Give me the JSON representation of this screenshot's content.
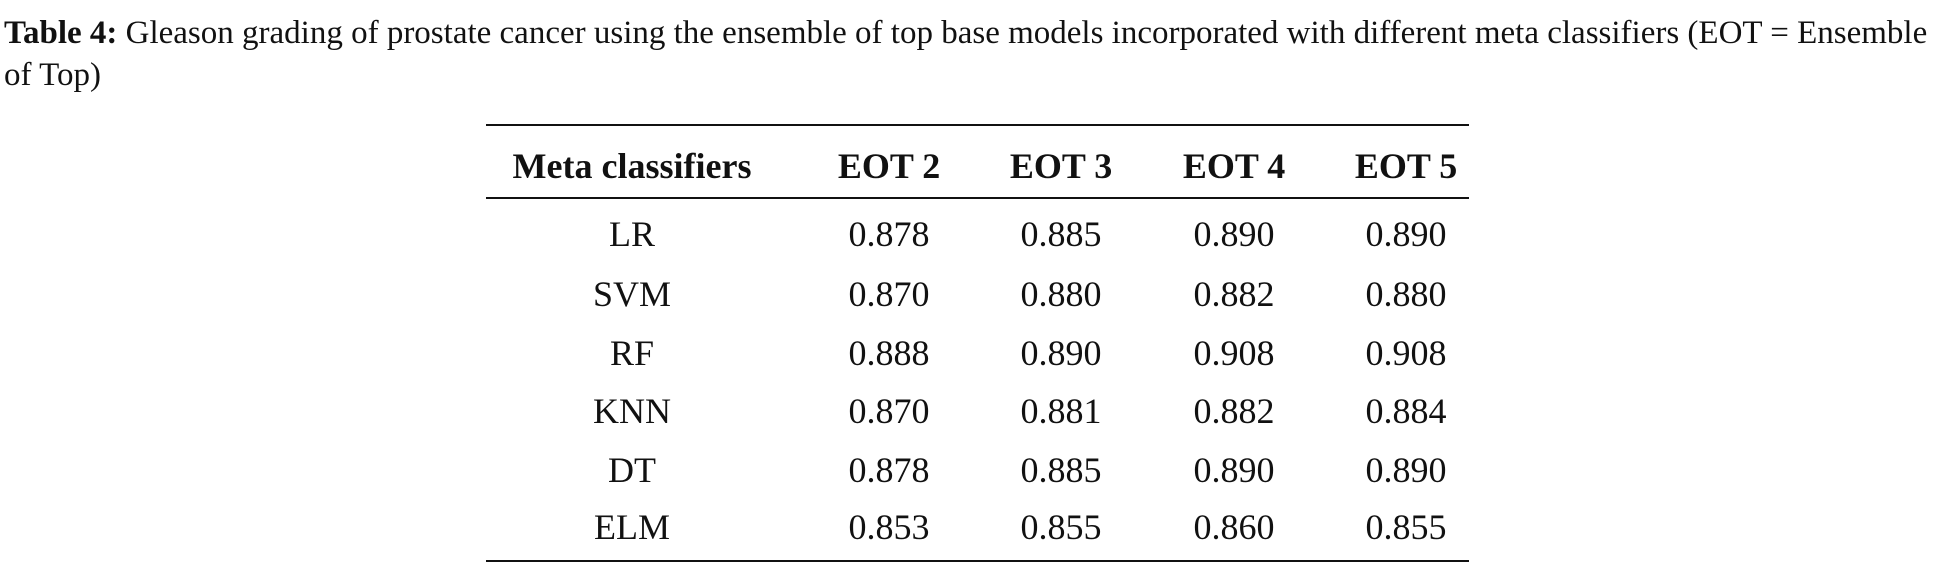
{
  "caption": {
    "label": "Table 4:",
    "text": "Gleason grading of prostate cancer using the ensemble of top base models incorporated with different meta classifiers (EOT = Ensemble of Top)"
  },
  "table": {
    "header": [
      "Meta classifiers",
      "EOT 2",
      "EOT 3",
      "EOT 4",
      "EOT 5"
    ],
    "rows": [
      [
        "LR",
        "0.878",
        "0.885",
        "0.890",
        "0.890"
      ],
      [
        "SVM",
        "0.870",
        "0.880",
        "0.882",
        "0.880"
      ],
      [
        "RF",
        "0.888",
        "0.890",
        "0.908",
        "0.908"
      ],
      [
        "KNN",
        "0.870",
        "0.881",
        "0.882",
        "0.884"
      ],
      [
        "DT",
        "0.878",
        "0.885",
        "0.890",
        "0.890"
      ],
      [
        "ELM",
        "0.853",
        "0.855",
        "0.860",
        "0.855"
      ]
    ]
  }
}
